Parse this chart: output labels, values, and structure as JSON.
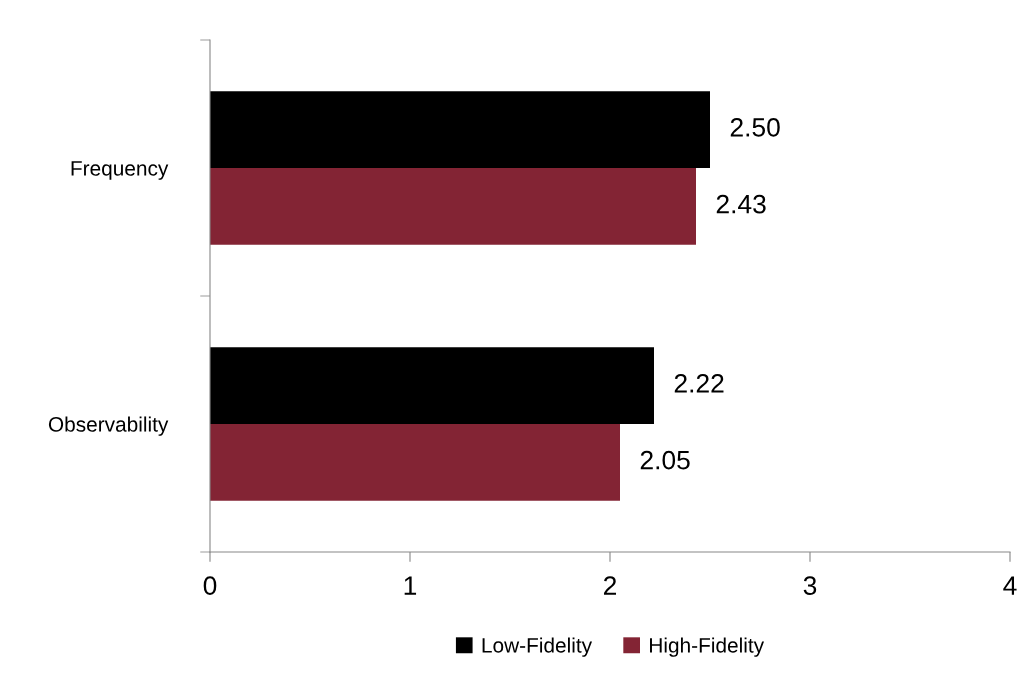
{
  "chart_data": {
    "type": "bar",
    "orientation": "horizontal",
    "categories": [
      "Frequency",
      "Observability"
    ],
    "series": [
      {
        "name": "Low-Fidelity",
        "color": "#000000",
        "values": [
          2.5,
          2.22
        ],
        "value_labels": [
          "2.50",
          "2.22"
        ]
      },
      {
        "name": "High-Fidelity",
        "color": "#832434",
        "values": [
          2.43,
          2.05
        ],
        "value_labels": [
          "2.43",
          "2.05"
        ]
      }
    ],
    "xlim": [
      0,
      4
    ],
    "xticks": [
      0,
      1,
      2,
      3,
      4
    ],
    "grid": false,
    "legend": "bottom"
  }
}
